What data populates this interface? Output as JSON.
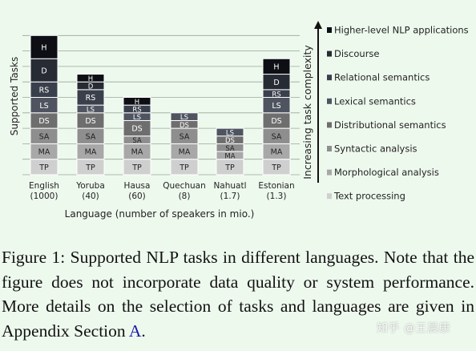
{
  "chart_data": {
    "type": "bar",
    "stacked": true,
    "categories": [
      "English",
      "Yoruba",
      "Hausa",
      "Quechuan",
      "Nahuatl",
      "Estonian"
    ],
    "category_sublabels": [
      "(1000)",
      "(40)",
      "(60)",
      "(8)",
      "(1.7)",
      "(1.3)"
    ],
    "speakers_millions": [
      1000,
      40,
      60,
      8,
      1.7,
      1.3
    ],
    "xlabel": "Language (number of speakers in mio.)",
    "ylabel": "Supported Tasks",
    "complexity_axis_label": "Increasing task complexity",
    "grid": true,
    "legend_position": "right",
    "series": [
      {
        "name": "Text processing",
        "abbr": "TP",
        "color": "#cfcfcf",
        "text_color": "#222222",
        "values": [
          1,
          1,
          1,
          1,
          1,
          1
        ]
      },
      {
        "name": "Morphological analysis",
        "abbr": "MA",
        "color": "#a8a8a8",
        "text_color": "#222222",
        "values": [
          1,
          1,
          1,
          1,
          0.5,
          1
        ]
      },
      {
        "name": "Syntactic analysis",
        "abbr": "SA",
        "color": "#8e8e8e",
        "text_color": "#222222",
        "values": [
          1,
          1,
          0.5,
          1,
          0.5,
          1
        ]
      },
      {
        "name": "Distributional semantics",
        "abbr": "DS",
        "color": "#6e6e6e",
        "text_color": "#ffffff",
        "values": [
          1,
          1,
          1,
          0.5,
          0.5,
          1
        ]
      },
      {
        "name": "Lexical semantics",
        "abbr": "LS",
        "color": "#4e5560",
        "text_color": "#ffffff",
        "values": [
          1,
          0.5,
          0.5,
          0.5,
          0.5,
          1
        ]
      },
      {
        "name": "Relational semantics",
        "abbr": "RS",
        "color": "#3a404b",
        "text_color": "#ffffff",
        "values": [
          1,
          1,
          0.5,
          0,
          0,
          0.5
        ]
      },
      {
        "name": "Discourse",
        "abbr": "D",
        "color": "#262b34",
        "text_color": "#ffffff",
        "values": [
          1.5,
          0.5,
          0,
          0,
          0,
          1
        ]
      },
      {
        "name": "Higher-level NLP applications",
        "abbr": "H",
        "color": "#0d0f14",
        "text_color": "#ffffff",
        "values": [
          1.5,
          0.5,
          0.5,
          0,
          0,
          1
        ]
      }
    ]
  },
  "caption": {
    "text": "Figure 1: Supported NLP tasks in different languages. Note that the figure does not incorporate data quality or system performance. More details on the selection of tasks and languages are given in Appendix Section ",
    "ref": "A",
    "end": "."
  },
  "watermark": "知乎 @王晨康"
}
